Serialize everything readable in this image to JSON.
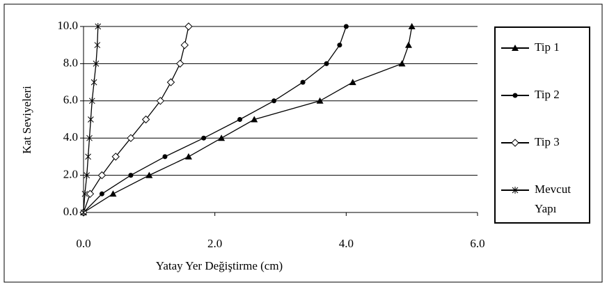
{
  "chart_data": {
    "type": "line",
    "x_label": "Yatay Yer Değiştirme (cm)",
    "y_label": "Kat Seviyeleri",
    "categories": [
      0,
      1,
      2,
      3,
      4,
      5,
      6,
      7,
      8,
      9,
      10
    ],
    "series": [
      {
        "name": "Tip 1",
        "color": "#000000",
        "marker": "triangle",
        "values": [
          0,
          0.45,
          1.0,
          1.6,
          2.1,
          2.6,
          3.6,
          4.1,
          4.85,
          4.95,
          5.0
        ]
      },
      {
        "name": "Tip 2",
        "color": "#000000",
        "marker": "circle",
        "values": [
          0,
          0.28,
          0.72,
          1.24,
          1.83,
          2.38,
          2.9,
          3.34,
          3.7,
          3.9,
          4.0
        ]
      },
      {
        "name": "Tip 3",
        "color": "#000000",
        "marker": "diamond",
        "values": [
          0,
          0.1,
          0.28,
          0.49,
          0.72,
          0.95,
          1.17,
          1.33,
          1.47,
          1.54,
          1.6
        ]
      },
      {
        "name": "Mevcut Yapı",
        "color": "#000000",
        "marker": "asterisk",
        "values": [
          0,
          0.02,
          0.05,
          0.07,
          0.09,
          0.11,
          0.13,
          0.16,
          0.19,
          0.21,
          0.22
        ]
      }
    ],
    "xlim": [
      0,
      6
    ],
    "xticks": [
      {
        "value": 0,
        "label": "0.0"
      },
      {
        "value": 2,
        "label": "2.0"
      },
      {
        "value": 4,
        "label": "4.0"
      },
      {
        "value": 6,
        "label": "6.0"
      }
    ],
    "ylim": [
      0,
      10
    ],
    "yticks": [
      {
        "value": 0,
        "label": "0.0"
      },
      {
        "value": 2,
        "label": "2.0"
      },
      {
        "value": 4,
        "label": "4.0"
      },
      {
        "value": 6,
        "label": "6.0"
      },
      {
        "value": 8,
        "label": "8.0"
      },
      {
        "value": 10,
        "label": "10.0"
      }
    ],
    "grid": true
  }
}
